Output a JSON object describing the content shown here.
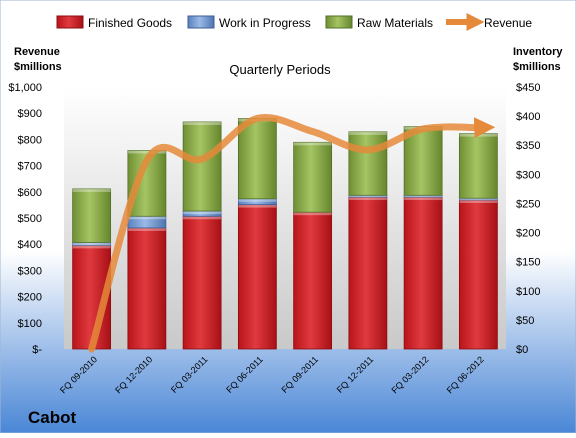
{
  "chart_data": {
    "type": "bar",
    "title": "Quarterly Periods",
    "company": "Cabot",
    "left_axis": {
      "label_lines": [
        "Revenue",
        "$millions"
      ],
      "ylim": [
        0,
        1000
      ],
      "ticks": [
        "$-",
        "$100",
        "$200",
        "$300",
        "$400",
        "$500",
        "$600",
        "$700",
        "$800",
        "$900",
        "$1,000"
      ]
    },
    "right_axis": {
      "label_lines": [
        "Inventory",
        "$millions"
      ],
      "ylim": [
        0,
        450
      ],
      "ticks": [
        "$0",
        "$50",
        "$100",
        "$150",
        "$200",
        "$250",
        "$300",
        "$350",
        "$400",
        "$450"
      ]
    },
    "categories": [
      "FQ 09-2010",
      "FQ 12-2010",
      "FQ 03-2011",
      "FQ 06-2011",
      "FQ 09-2011",
      "FQ 12-2011",
      "FQ 03-2012",
      "FQ 06-2012"
    ],
    "series": [
      {
        "name": "Finished Goods",
        "axis": "right",
        "stacked": true,
        "color": "#cc2027",
        "values": [
          178,
          208,
          228,
          248,
          235,
          261,
          261,
          256
        ]
      },
      {
        "name": "Work in Progress",
        "axis": "right",
        "stacked": true,
        "color": "#6f96d1",
        "values": [
          5,
          20,
          9,
          10,
          0,
          3,
          3,
          3
        ]
      },
      {
        "name": "Raw Materials",
        "axis": "right",
        "stacked": true,
        "color": "#8fb04a",
        "values": [
          92,
          113,
          153,
          138,
          120,
          109,
          118,
          111
        ]
      },
      {
        "name": "Revenue",
        "axis": "left",
        "type": "line",
        "color": "#e58a3a",
        "values": [
          0,
          720,
          725,
          880,
          830,
          760,
          840,
          845
        ]
      }
    ],
    "legend": "top",
    "grid": false
  }
}
